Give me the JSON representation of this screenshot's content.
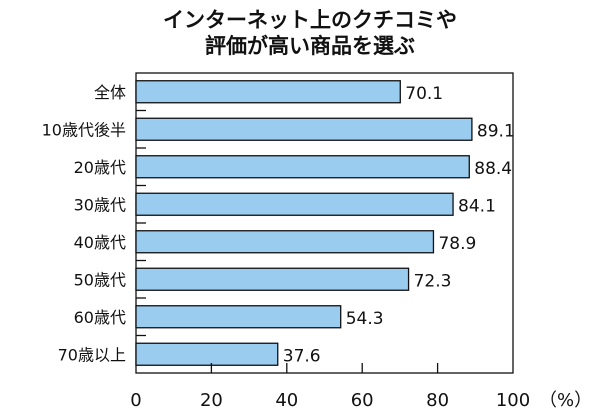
{
  "chart_data": {
    "type": "bar",
    "orientation": "horizontal",
    "title": [
      "インターネット上のクチコミや",
      "評価が高い商品を選ぶ"
    ],
    "categories": [
      "全体",
      "10歳代後半",
      "20歳代",
      "30歳代",
      "40歳代",
      "50歳代",
      "60歳代",
      "70歳以上"
    ],
    "values": [
      70.1,
      89.1,
      88.4,
      84.1,
      78.9,
      72.3,
      54.3,
      37.6
    ],
    "value_labels": [
      "70.1",
      "89.1",
      "88.4",
      "84.1",
      "78.9",
      "72.3",
      "54.3",
      "37.6"
    ],
    "xlim": [
      0,
      100
    ],
    "xticks": [
      "0",
      "20",
      "40",
      "60",
      "80",
      "100"
    ],
    "xunit": "（%）",
    "xlabel": "",
    "ylabel": "",
    "grid": false,
    "legend": "none",
    "bar_color": "#99CCEE"
  }
}
